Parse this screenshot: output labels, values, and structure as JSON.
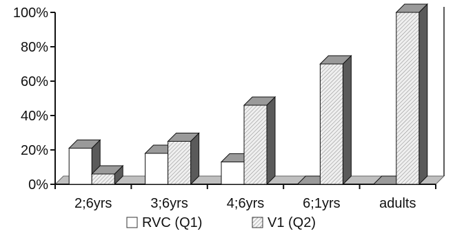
{
  "chart_data": {
    "type": "bar",
    "style": "3d-clustered-columns",
    "categories": [
      "2;6yrs",
      "3;6yrs",
      "4;6yrs",
      "6;1yrs",
      "adults"
    ],
    "series": [
      {
        "name": "RVC (Q1)",
        "values": [
          21,
          18,
          13,
          0,
          0
        ],
        "fill": "plain",
        "color": "#ffffff"
      },
      {
        "name": "V1 (Q2)",
        "values": [
          6,
          25,
          46,
          70,
          100
        ],
        "fill": "hatched",
        "color": "#e8e8e8"
      }
    ],
    "y_ticks": [
      "0%",
      "20%",
      "40%",
      "60%",
      "80%",
      "100%"
    ],
    "ylim": [
      0,
      100
    ],
    "y_unit": "%",
    "grid": false,
    "legend_position": "bottom",
    "floor_color": "#bfbfbf",
    "side_color": "#5a5a5a",
    "top_color": "#9a9a9a"
  }
}
